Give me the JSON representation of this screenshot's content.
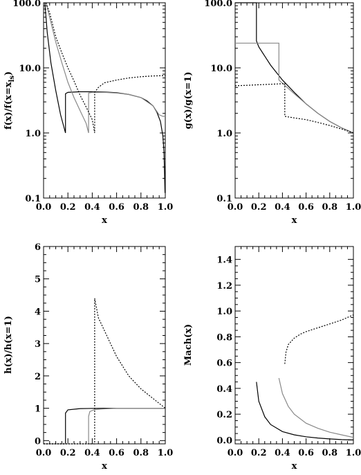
{
  "chart_data": [
    {
      "type": "line",
      "ylabel": "f(x)/f(x=x_ls)",
      "xlabel": "x",
      "xlim": [
        0.0,
        1.0
      ],
      "ylim": [
        0.1,
        100.0
      ],
      "yscale": "log",
      "xticks": [
        "0.0",
        "0.2",
        "0.4",
        "0.6",
        "0.8",
        "1.0"
      ],
      "yticks": [
        "0.1",
        "1.0",
        "10.0",
        "100.0"
      ],
      "series": [
        {
          "style": "solid",
          "color": "#000000",
          "x": [
            0.01,
            0.03,
            0.06,
            0.1,
            0.14,
            0.18,
            0.18,
            0.2,
            0.3,
            0.4,
            0.5,
            0.6,
            0.7,
            0.8,
            0.85,
            0.9,
            0.93,
            0.96,
            0.98,
            0.99,
            0.998
          ],
          "y": [
            100,
            35,
            12,
            4.5,
            1.9,
            1.0,
            4.0,
            4.2,
            4.3,
            4.3,
            4.25,
            4.15,
            3.9,
            3.5,
            3.1,
            2.6,
            2.1,
            1.5,
            0.9,
            0.5,
            0.12
          ]
        },
        {
          "style": "solid",
          "color": "#888888",
          "x": [
            0.02,
            0.05,
            0.1,
            0.15,
            0.2,
            0.25,
            0.3,
            0.35,
            0.37,
            0.37,
            0.4,
            0.5,
            0.6,
            0.7,
            0.8,
            0.9,
            0.95,
            0.98,
            1.0
          ],
          "y": [
            100,
            60,
            25,
            12,
            6,
            3.5,
            2.2,
            1.4,
            1.0,
            4.1,
            4.2,
            4.2,
            4.1,
            3.9,
            3.5,
            2.6,
            1.9,
            1.8,
            1.8
          ]
        },
        {
          "style": "dotted",
          "color": "#000000",
          "x": [
            0.02,
            0.05,
            0.1,
            0.15,
            0.2,
            0.25,
            0.3,
            0.35,
            0.4,
            0.42,
            0.42,
            0.45,
            0.5,
            0.6,
            0.7,
            0.8,
            0.9,
            1.0
          ],
          "y": [
            100,
            70,
            30,
            17,
            10,
            6.3,
            3.8,
            2.5,
            1.6,
            1.0,
            4.2,
            5.0,
            5.9,
            6.5,
            7.0,
            7.3,
            7.5,
            7.6
          ]
        }
      ]
    },
    {
      "type": "line",
      "ylabel": "g(x)/g(x=1)",
      "xlabel": "x",
      "xlim": [
        0.0,
        1.0
      ],
      "ylim": [
        0.1,
        100.0
      ],
      "yscale": "log",
      "xticks": [
        "0.0",
        "0.2",
        "0.4",
        "0.6",
        "0.8",
        "1.0"
      ],
      "yticks": [
        "0.1",
        "1.0",
        "10.0",
        "100.0"
      ],
      "series": [
        {
          "style": "solid",
          "color": "#000000",
          "x": [
            0.0,
            0.18,
            0.18,
            0.2,
            0.3,
            0.4,
            0.5,
            0.6,
            0.7,
            0.8,
            0.9,
            1.0
          ],
          "y": [
            110,
            110,
            26,
            21,
            11,
            6.5,
            4.2,
            2.8,
            2.0,
            1.5,
            1.2,
            1.0
          ]
        },
        {
          "style": "solid",
          "color": "#888888",
          "x": [
            0.0,
            0.37,
            0.37,
            0.4,
            0.5,
            0.6,
            0.7,
            0.8,
            0.9,
            1.0
          ],
          "y": [
            24,
            24,
            6.5,
            5.8,
            4.0,
            2.8,
            2.0,
            1.5,
            1.2,
            1.0
          ]
        },
        {
          "style": "dotted",
          "color": "#000000",
          "x": [
            0.0,
            0.1,
            0.2,
            0.3,
            0.4,
            0.42,
            0.42,
            0.5,
            0.6,
            0.7,
            0.8,
            0.9,
            1.0
          ],
          "y": [
            5.3,
            5.4,
            5.5,
            5.6,
            5.7,
            5.8,
            1.8,
            1.7,
            1.6,
            1.45,
            1.3,
            1.15,
            1.0
          ]
        }
      ]
    },
    {
      "type": "line",
      "ylabel": "h(x)/h(x=1)",
      "xlabel": "x",
      "xlim": [
        0.0,
        1.0
      ],
      "ylim": [
        -0.1,
        6.0
      ],
      "xticks": [
        "0.0",
        "0.2",
        "0.4",
        "0.6",
        "0.8",
        "1.0"
      ],
      "yticks": [
        "0",
        "1",
        "2",
        "3",
        "4",
        "5",
        "6"
      ],
      "series": [
        {
          "style": "solid",
          "color": "#000000",
          "x": [
            0.0,
            0.18,
            0.18,
            0.2,
            0.3,
            0.5,
            1.0
          ],
          "y": [
            -0.1,
            -0.1,
            0.85,
            0.95,
            0.99,
            1.0,
            1.0
          ]
        },
        {
          "style": "solid",
          "color": "#888888",
          "x": [
            0.0,
            0.37,
            0.37,
            0.38,
            0.42,
            0.5,
            0.6,
            1.0
          ],
          "y": [
            -0.1,
            -0.1,
            0.75,
            0.9,
            0.96,
            0.98,
            1.0,
            1.0
          ]
        },
        {
          "style": "dotted",
          "color": "#000000",
          "x": [
            0.0,
            0.42,
            0.42,
            0.45,
            0.5,
            0.55,
            0.6,
            0.7,
            0.8,
            0.9,
            1.0
          ],
          "y": [
            -0.1,
            -0.1,
            4.4,
            3.8,
            3.4,
            3.0,
            2.6,
            2.0,
            1.6,
            1.3,
            1.0
          ]
        }
      ]
    },
    {
      "type": "line",
      "ylabel": "Mach(x)",
      "xlabel": "x",
      "xlim": [
        0.0,
        1.0
      ],
      "ylim": [
        -0.03,
        1.5
      ],
      "xticks": [
        "0.0",
        "0.2",
        "0.4",
        "0.6",
        "0.8",
        "1.0"
      ],
      "yticks": [
        "0.0",
        "0.2",
        "0.4",
        "0.6",
        "0.8",
        "1.0",
        "1.2",
        "1.4"
      ],
      "series": [
        {
          "style": "solid",
          "color": "#000000",
          "x": [
            0.18,
            0.2,
            0.25,
            0.3,
            0.4,
            0.5,
            0.6,
            0.7,
            0.8,
            0.9,
            1.0
          ],
          "y": [
            0.45,
            0.3,
            0.18,
            0.12,
            0.065,
            0.04,
            0.025,
            0.015,
            0.008,
            0.003,
            0.0
          ]
        },
        {
          "style": "solid",
          "color": "#888888",
          "x": [
            0.37,
            0.4,
            0.45,
            0.5,
            0.6,
            0.7,
            0.8,
            0.9,
            1.0
          ],
          "y": [
            0.48,
            0.36,
            0.26,
            0.2,
            0.13,
            0.09,
            0.06,
            0.04,
            0.02
          ]
        },
        {
          "style": "dotted",
          "color": "#000000",
          "x": [
            0.42,
            0.43,
            0.45,
            0.5,
            0.55,
            0.6,
            0.7,
            0.8,
            0.9,
            1.0
          ],
          "y": [
            0.59,
            0.68,
            0.74,
            0.79,
            0.82,
            0.84,
            0.87,
            0.9,
            0.93,
            0.97
          ]
        }
      ]
    }
  ]
}
